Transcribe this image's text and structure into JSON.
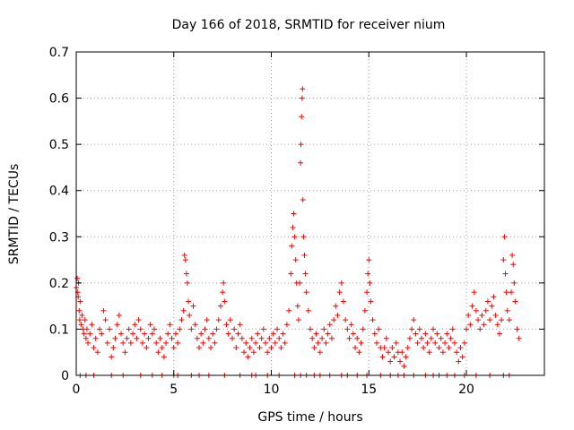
{
  "chart_data": {
    "type": "scatter",
    "title": "Day 166 of 2018, SRMTID for receiver nium",
    "xlabel": "GPS time / hours",
    "ylabel": "SRMTID / TECUs",
    "xlim": [
      0,
      24
    ],
    "ylim": [
      0,
      0.7
    ],
    "xticks": [
      "0",
      "5",
      "10",
      "15",
      "20"
    ],
    "yticks": [
      "0",
      "0.1",
      "0.2",
      "0.3",
      "0.4",
      "0.5",
      "0.6",
      "0.7"
    ],
    "grid": true,
    "marker": "+",
    "color": "#ff0000",
    "series": [
      {
        "name": "SRMTID",
        "points": [
          [
            0.0,
            0.19
          ],
          [
            0.05,
            0.21
          ],
          [
            0.08,
            0.18
          ],
          [
            0.1,
            0.17
          ],
          [
            0.12,
            0.2
          ],
          [
            0.15,
            0.14
          ],
          [
            0.18,
            0.12
          ],
          [
            0.2,
            0.16
          ],
          [
            0.25,
            0.11
          ],
          [
            0.3,
            0.13
          ],
          [
            0.35,
            0.1
          ],
          [
            0.4,
            0.09
          ],
          [
            0.45,
            0.12
          ],
          [
            0.5,
            0.08
          ],
          [
            0.55,
            0.1
          ],
          [
            0.6,
            0.07
          ],
          [
            0.7,
            0.09
          ],
          [
            0.8,
            0.11
          ],
          [
            0.9,
            0.06
          ],
          [
            1.0,
            0.08
          ],
          [
            1.1,
            0.05
          ],
          [
            1.2,
            0.1
          ],
          [
            1.3,
            0.09
          ],
          [
            1.4,
            0.14
          ],
          [
            1.5,
            0.12
          ],
          [
            1.6,
            0.07
          ],
          [
            1.7,
            0.1
          ],
          [
            1.8,
            0.04
          ],
          [
            1.9,
            0.06
          ],
          [
            2.0,
            0.08
          ],
          [
            2.1,
            0.11
          ],
          [
            2.2,
            0.13
          ],
          [
            2.3,
            0.09
          ],
          [
            2.4,
            0.07
          ],
          [
            2.5,
            0.05
          ],
          [
            2.6,
            0.08
          ],
          [
            2.7,
            0.1
          ],
          [
            2.8,
            0.07
          ],
          [
            2.9,
            0.09
          ],
          [
            3.0,
            0.11
          ],
          [
            3.1,
            0.08
          ],
          [
            3.2,
            0.12
          ],
          [
            3.3,
            0.1
          ],
          [
            3.4,
            0.07
          ],
          [
            3.5,
            0.09
          ],
          [
            3.6,
            0.06
          ],
          [
            3.7,
            0.08
          ],
          [
            3.8,
            0.11
          ],
          [
            3.9,
            0.09
          ],
          [
            4.0,
            0.1
          ],
          [
            4.1,
            0.07
          ],
          [
            4.2,
            0.05
          ],
          [
            4.3,
            0.08
          ],
          [
            4.4,
            0.06
          ],
          [
            4.5,
            0.04
          ],
          [
            4.6,
            0.07
          ],
          [
            4.7,
            0.09
          ],
          [
            4.8,
            0.11
          ],
          [
            4.9,
            0.08
          ],
          [
            5.0,
            0.06
          ],
          [
            5.1,
            0.09
          ],
          [
            5.2,
            0.07
          ],
          [
            5.3,
            0.1
          ],
          [
            5.4,
            0.12
          ],
          [
            5.5,
            0.14
          ],
          [
            5.55,
            0.26
          ],
          [
            5.6,
            0.25
          ],
          [
            5.65,
            0.22
          ],
          [
            5.7,
            0.2
          ],
          [
            5.75,
            0.16
          ],
          [
            5.8,
            0.13
          ],
          [
            5.9,
            0.1
          ],
          [
            6.0,
            0.15
          ],
          [
            6.1,
            0.11
          ],
          [
            6.2,
            0.08
          ],
          [
            6.3,
            0.06
          ],
          [
            6.4,
            0.09
          ],
          [
            6.5,
            0.07
          ],
          [
            6.6,
            0.1
          ],
          [
            6.7,
            0.12
          ],
          [
            6.8,
            0.08
          ],
          [
            6.9,
            0.06
          ],
          [
            7.0,
            0.09
          ],
          [
            7.1,
            0.07
          ],
          [
            7.2,
            0.1
          ],
          [
            7.3,
            0.12
          ],
          [
            7.4,
            0.15
          ],
          [
            7.5,
            0.18
          ],
          [
            7.55,
            0.2
          ],
          [
            7.6,
            0.16
          ],
          [
            7.7,
            0.11
          ],
          [
            7.8,
            0.09
          ],
          [
            7.9,
            0.12
          ],
          [
            8.0,
            0.08
          ],
          [
            8.1,
            0.1
          ],
          [
            8.2,
            0.06
          ],
          [
            8.3,
            0.09
          ],
          [
            8.4,
            0.11
          ],
          [
            8.5,
            0.08
          ],
          [
            8.6,
            0.05
          ],
          [
            8.7,
            0.07
          ],
          [
            8.8,
            0.04
          ],
          [
            8.9,
            0.06
          ],
          [
            9.0,
            0.08
          ],
          [
            9.1,
            0.05
          ],
          [
            9.2,
            0.07
          ],
          [
            9.3,
            0.09
          ],
          [
            9.4,
            0.06
          ],
          [
            9.5,
            0.08
          ],
          [
            9.6,
            0.1
          ],
          [
            9.7,
            0.07
          ],
          [
            9.8,
            0.05
          ],
          [
            9.9,
            0.08
          ],
          [
            10.0,
            0.06
          ],
          [
            10.1,
            0.09
          ],
          [
            10.2,
            0.07
          ],
          [
            10.3,
            0.1
          ],
          [
            10.4,
            0.08
          ],
          [
            10.5,
            0.06
          ],
          [
            10.6,
            0.09
          ],
          [
            10.7,
            0.07
          ],
          [
            10.8,
            0.11
          ],
          [
            10.9,
            0.14
          ],
          [
            11.0,
            0.22
          ],
          [
            11.05,
            0.28
          ],
          [
            11.1,
            0.32
          ],
          [
            11.15,
            0.35
          ],
          [
            11.2,
            0.3
          ],
          [
            11.25,
            0.25
          ],
          [
            11.3,
            0.2
          ],
          [
            11.35,
            0.15
          ],
          [
            11.4,
            0.12
          ],
          [
            11.45,
            0.2
          ],
          [
            11.5,
            0.46
          ],
          [
            11.52,
            0.5
          ],
          [
            11.55,
            0.56
          ],
          [
            11.58,
            0.6
          ],
          [
            11.6,
            0.62
          ],
          [
            11.62,
            0.38
          ],
          [
            11.65,
            0.3
          ],
          [
            11.7,
            0.26
          ],
          [
            11.75,
            0.22
          ],
          [
            11.8,
            0.18
          ],
          [
            11.9,
            0.14
          ],
          [
            12.0,
            0.1
          ],
          [
            12.1,
            0.08
          ],
          [
            12.2,
            0.06
          ],
          [
            12.3,
            0.09
          ],
          [
            12.4,
            0.07
          ],
          [
            12.5,
            0.05
          ],
          [
            12.6,
            0.08
          ],
          [
            12.7,
            0.1
          ],
          [
            12.8,
            0.07
          ],
          [
            12.9,
            0.09
          ],
          [
            13.0,
            0.11
          ],
          [
            13.1,
            0.08
          ],
          [
            13.2,
            0.12
          ],
          [
            13.3,
            0.15
          ],
          [
            13.4,
            0.13
          ],
          [
            13.5,
            0.18
          ],
          [
            13.6,
            0.2
          ],
          [
            13.7,
            0.16
          ],
          [
            13.8,
            0.12
          ],
          [
            13.9,
            0.1
          ],
          [
            14.0,
            0.08
          ],
          [
            14.1,
            0.11
          ],
          [
            14.2,
            0.09
          ],
          [
            14.3,
            0.06
          ],
          [
            14.4,
            0.08
          ],
          [
            14.5,
            0.05
          ],
          [
            14.6,
            0.07
          ],
          [
            14.7,
            0.1
          ],
          [
            14.8,
            0.14
          ],
          [
            14.9,
            0.18
          ],
          [
            14.95,
            0.22
          ],
          [
            15.0,
            0.25
          ],
          [
            15.05,
            0.2
          ],
          [
            15.1,
            0.16
          ],
          [
            15.2,
            0.12
          ],
          [
            15.3,
            0.09
          ],
          [
            15.4,
            0.07
          ],
          [
            15.5,
            0.1
          ],
          [
            15.6,
            0.06
          ],
          [
            15.7,
            0.04
          ],
          [
            15.8,
            0.06
          ],
          [
            15.9,
            0.08
          ],
          [
            16.0,
            0.05
          ],
          [
            16.1,
            0.03
          ],
          [
            16.2,
            0.06
          ],
          [
            16.3,
            0.04
          ],
          [
            16.4,
            0.07
          ],
          [
            16.5,
            0.05
          ],
          [
            16.6,
            0.03
          ],
          [
            16.7,
            0.05
          ],
          [
            16.8,
            0.02
          ],
          [
            16.9,
            0.04
          ],
          [
            17.0,
            0.06
          ],
          [
            17.1,
            0.08
          ],
          [
            17.2,
            0.1
          ],
          [
            17.3,
            0.12
          ],
          [
            17.4,
            0.09
          ],
          [
            17.5,
            0.07
          ],
          [
            17.6,
            0.1
          ],
          [
            17.7,
            0.08
          ],
          [
            17.8,
            0.06
          ],
          [
            17.9,
            0.09
          ],
          [
            18.0,
            0.07
          ],
          [
            18.1,
            0.05
          ],
          [
            18.2,
            0.08
          ],
          [
            18.3,
            0.1
          ],
          [
            18.4,
            0.07
          ],
          [
            18.5,
            0.09
          ],
          [
            18.6,
            0.06
          ],
          [
            18.7,
            0.08
          ],
          [
            18.8,
            0.05
          ],
          [
            18.9,
            0.07
          ],
          [
            19.0,
            0.09
          ],
          [
            19.1,
            0.06
          ],
          [
            19.2,
            0.08
          ],
          [
            19.3,
            0.1
          ],
          [
            19.4,
            0.07
          ],
          [
            19.5,
            0.05
          ],
          [
            19.6,
            0.03
          ],
          [
            19.7,
            0.06
          ],
          [
            19.8,
            0.04
          ],
          [
            19.9,
            0.07
          ],
          [
            20.0,
            0.1
          ],
          [
            20.1,
            0.13
          ],
          [
            20.2,
            0.11
          ],
          [
            20.3,
            0.15
          ],
          [
            20.4,
            0.18
          ],
          [
            20.5,
            0.14
          ],
          [
            20.6,
            0.12
          ],
          [
            20.7,
            0.1
          ],
          [
            20.8,
            0.13
          ],
          [
            20.9,
            0.11
          ],
          [
            21.0,
            0.14
          ],
          [
            21.1,
            0.16
          ],
          [
            21.2,
            0.12
          ],
          [
            21.3,
            0.15
          ],
          [
            21.4,
            0.17
          ],
          [
            21.5,
            0.13
          ],
          [
            21.6,
            0.11
          ],
          [
            21.7,
            0.09
          ],
          [
            21.8,
            0.12
          ],
          [
            21.9,
            0.25
          ],
          [
            21.95,
            0.3
          ],
          [
            22.0,
            0.22
          ],
          [
            22.05,
            0.18
          ],
          [
            22.1,
            0.14
          ],
          [
            22.2,
            0.12
          ],
          [
            22.3,
            0.18
          ],
          [
            22.35,
            0.26
          ],
          [
            22.4,
            0.24
          ],
          [
            22.45,
            0.2
          ],
          [
            22.5,
            0.16
          ],
          [
            22.6,
            0.1
          ],
          [
            22.7,
            0.08
          ]
        ],
        "zero_points_x": [
          0.2,
          0.5,
          0.9,
          1.8,
          2.4,
          3.3,
          3.9,
          4.4,
          5.0,
          5.2,
          5.9,
          6.3,
          6.8,
          7.6,
          8.4,
          9.0,
          9.2,
          9.8,
          10.4,
          11.2,
          11.5,
          11.8,
          12.2,
          12.5,
          13.0,
          13.6,
          13.9,
          14.4,
          14.9,
          15.6,
          16.1,
          16.5,
          16.8,
          17.3,
          17.9,
          18.3,
          18.6,
          19.0,
          19.4,
          19.9,
          20.5,
          21.2,
          21.9,
          22.2
        ]
      }
    ]
  }
}
